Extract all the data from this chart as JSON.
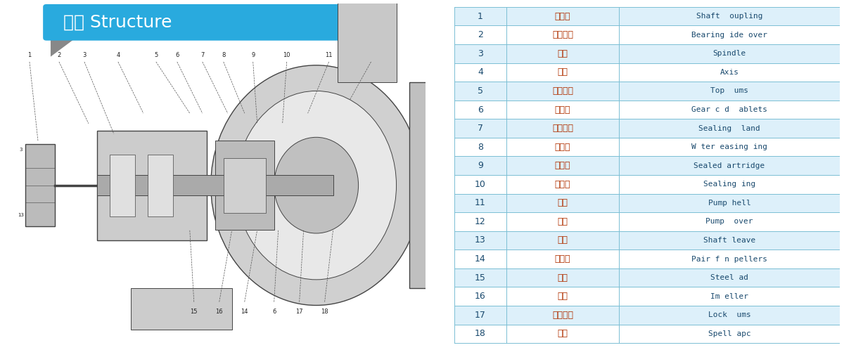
{
  "title_text": "结构 Structure",
  "title_bg_color": "#29AADE",
  "title_text_color": "#FFFFFF",
  "title_font_size": 18,
  "table_row_color_even": "#DDF0FA",
  "table_row_color_odd": "#FFFFFF",
  "table_border_color": "#7BBFD4",
  "table_num_color": "#1A4A6E",
  "table_zh_color": "#B03000",
  "table_en_color": "#1A4A6E",
  "rows": [
    [
      1,
      "联轴器",
      "Shaft  oupling"
    ],
    [
      2,
      "轴承侧盖",
      "Bearing ide over"
    ],
    [
      3,
      "主轴",
      "Spindle"
    ],
    [
      4,
      "轴座",
      "Axis"
    ],
    [
      5,
      "顶紧螈母",
      "Top  ums"
    ],
    [
      6,
      "挡酸片",
      "Gear c d  ablets"
    ],
    [
      7,
      "密封压盖",
      "Sealing  land"
    ],
    [
      8,
      "水封环",
      "W ter easing ing"
    ],
    [
      9,
      "密封盒",
      "Sealed artridge"
    ],
    [
      10,
      "密封圈",
      "Sealing ing"
    ],
    [
      11,
      "泵壳",
      "Pump hell"
    ],
    [
      12,
      "泵盖",
      "Pump  over"
    ],
    [
      13,
      "轴套",
      "Shaft leave"
    ],
    [
      14,
      "副叶轮",
      "Pair f n pellers"
    ],
    [
      15,
      "钐垫",
      "Steel ad"
    ],
    [
      16,
      "叶轮",
      "Im eller"
    ],
    [
      17,
      "锁紧螈母",
      "Lock  ums"
    ],
    [
      18,
      "拼帽",
      "Spell apc"
    ]
  ],
  "fig_width": 12.0,
  "fig_height": 4.98
}
